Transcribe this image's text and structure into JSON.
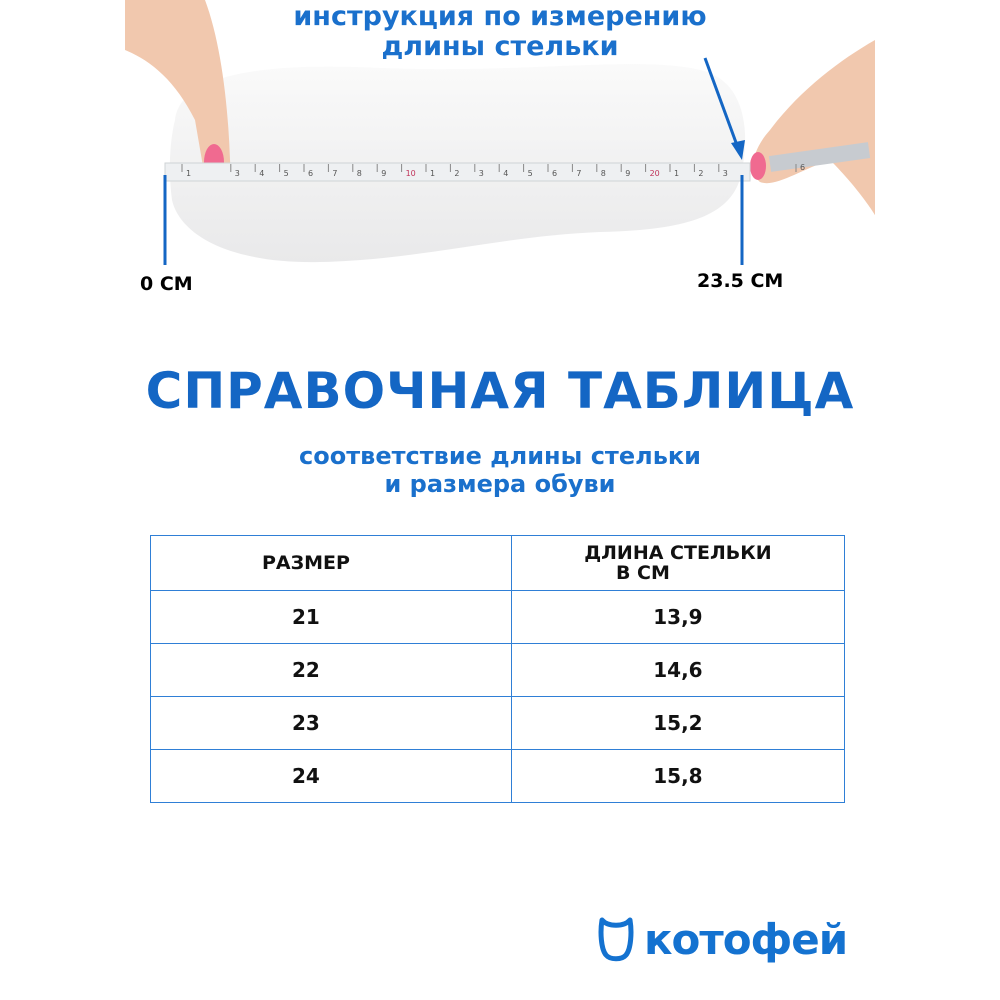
{
  "header": {
    "line1": "инструкция по измерению",
    "line2": "длины стельки"
  },
  "measure": {
    "start_label": "0 СМ",
    "end_label": "23.5 СМ",
    "tape_numbers": [
      "1",
      "3",
      "4",
      "5",
      "6",
      "7",
      "8",
      "9",
      "10",
      "1",
      "2",
      "3",
      "4",
      "5",
      "6",
      "7",
      "8",
      "9",
      "20",
      "1",
      "2",
      "3",
      "6"
    ]
  },
  "title": "СПРАВОЧНАЯ ТАБЛИЦА",
  "subtitle": {
    "line1": "соответствие длины стельки",
    "line2": "и размера обуви"
  },
  "table": {
    "headers": [
      "РАЗМЕР",
      "ДЛИНА СТЕЛЬКИ",
      "В СМ"
    ],
    "rows": [
      [
        "21",
        "13,9"
      ],
      [
        "22",
        "14,6"
      ],
      [
        "23",
        "15,2"
      ],
      [
        "24",
        "15,8"
      ]
    ]
  },
  "brand": {
    "name": "котофей",
    "color": "#1472d0"
  },
  "colors": {
    "accent": "#1466c4",
    "table_border": "#2f7fd6"
  }
}
